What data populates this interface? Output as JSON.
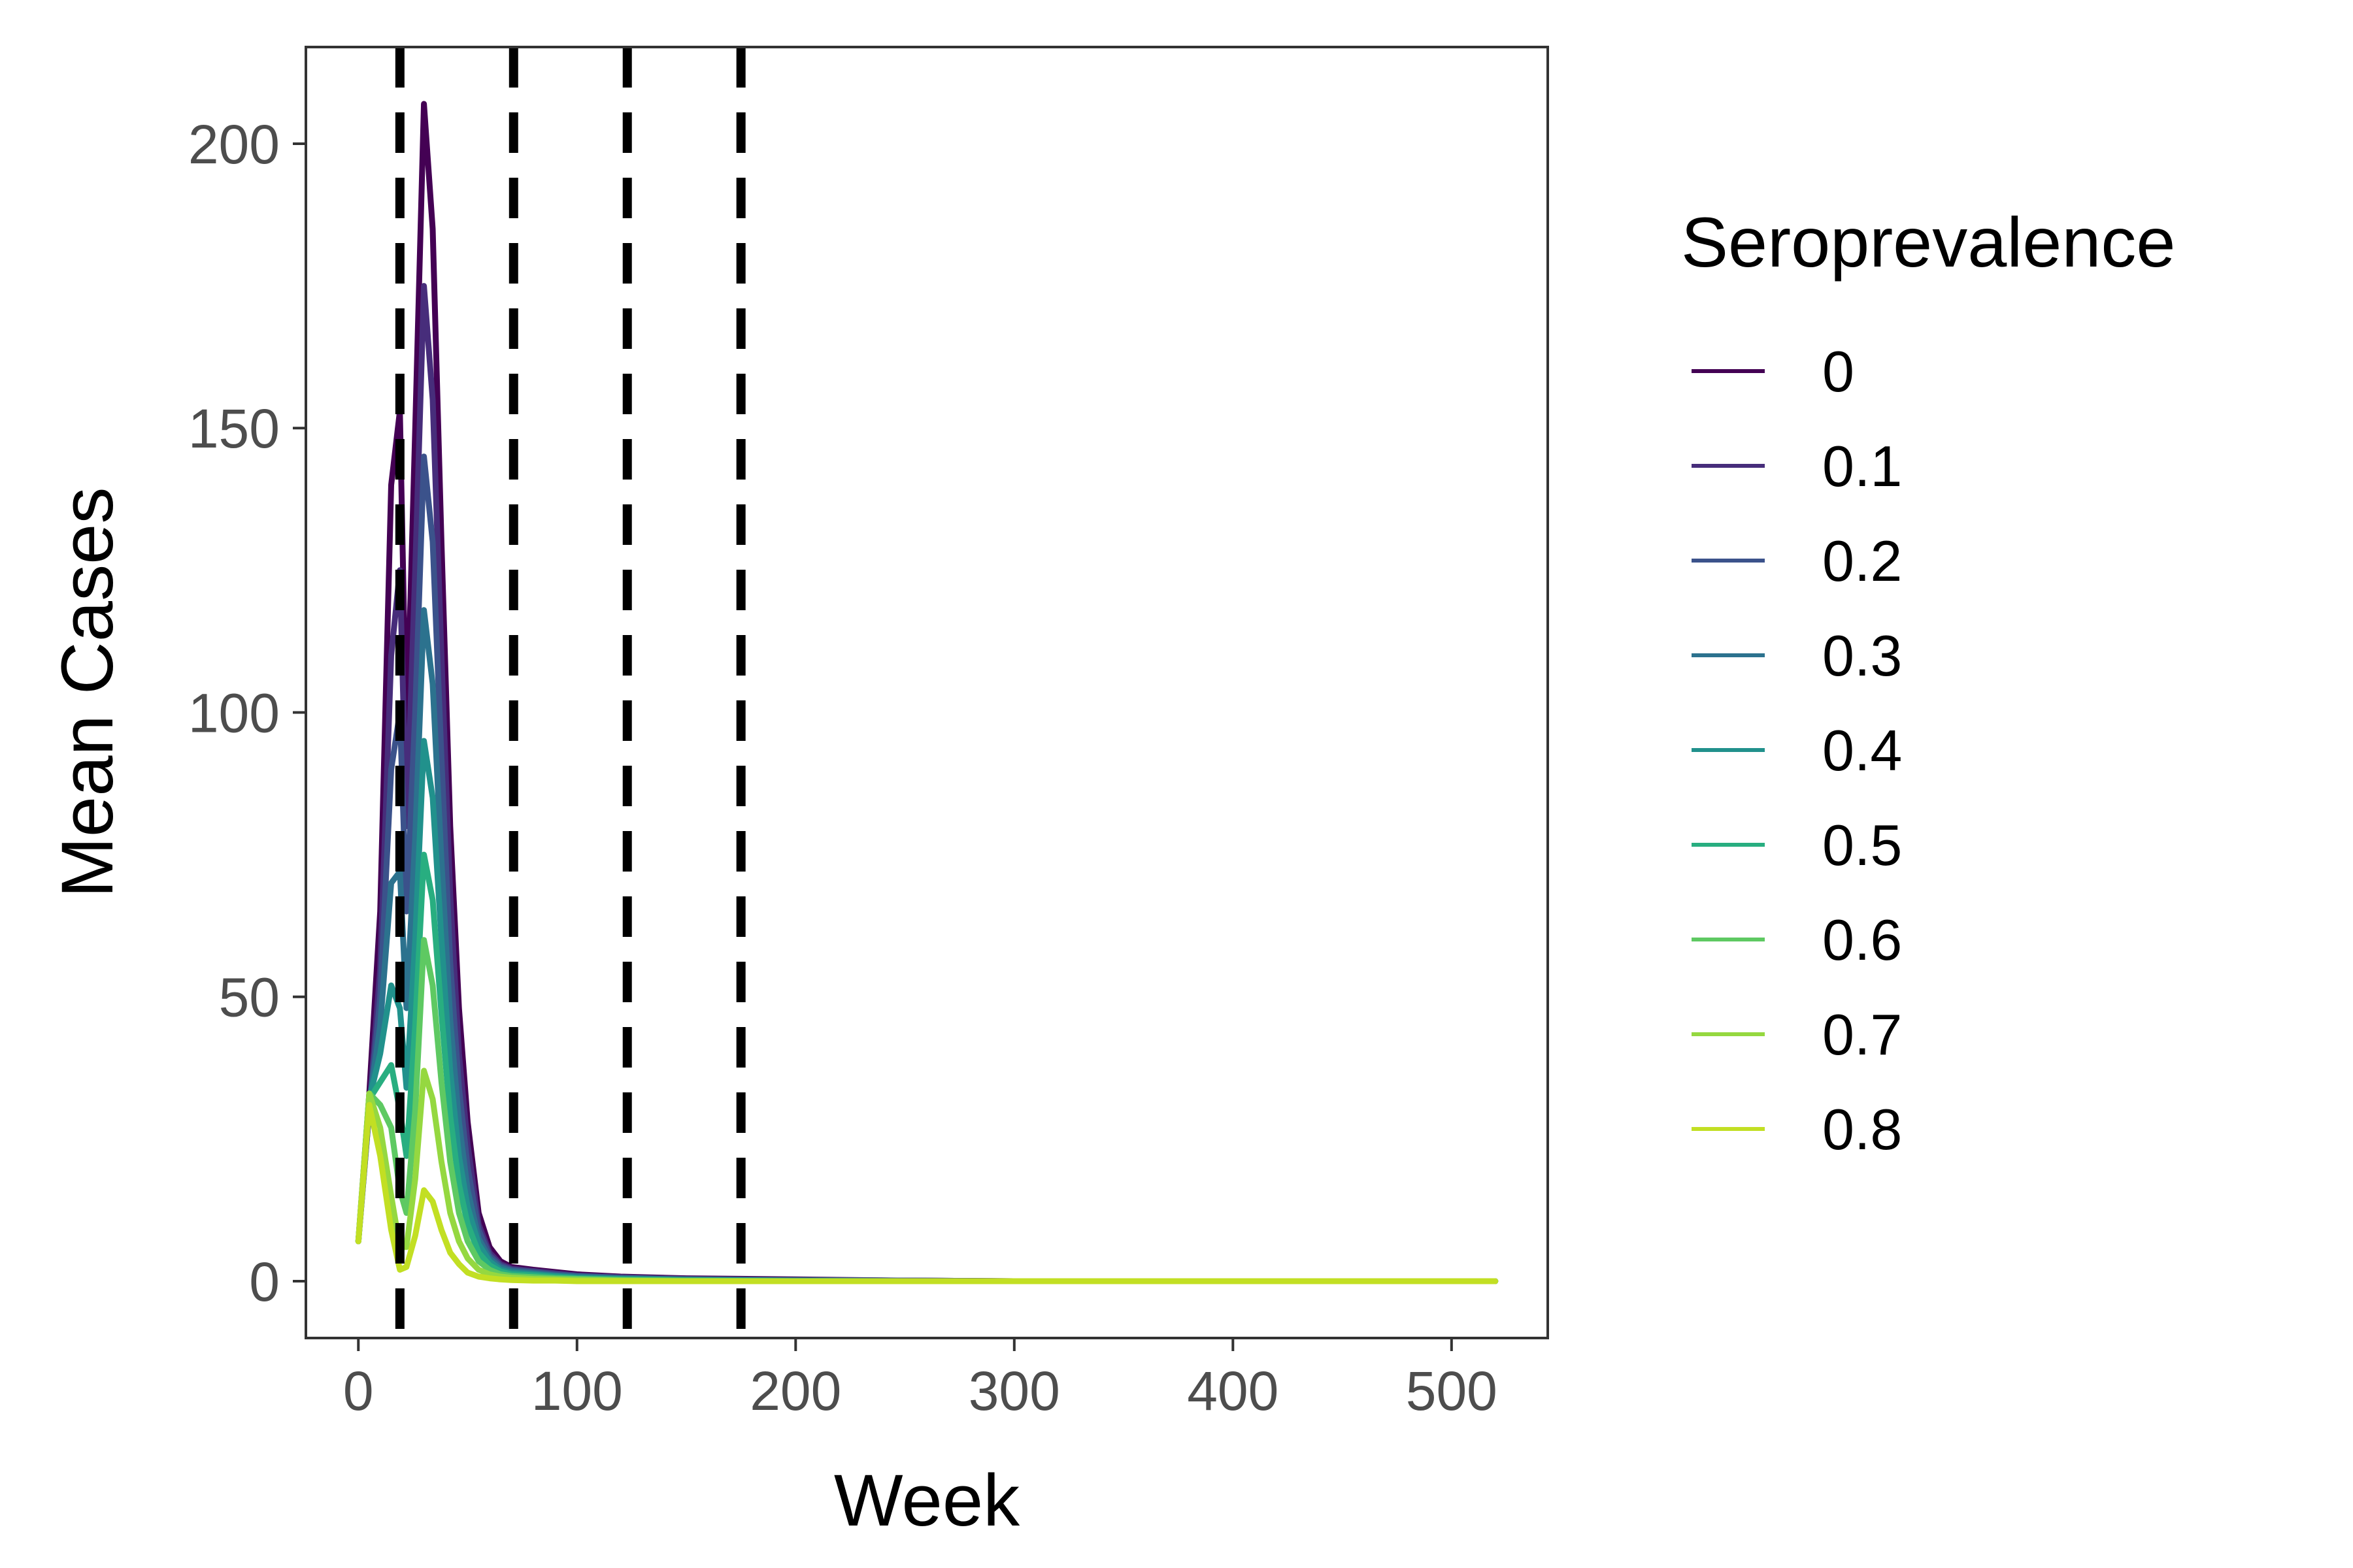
{
  "chart_data": {
    "type": "line",
    "xlabel": "Week",
    "ylabel": "Mean Cases",
    "xlim": [
      -24,
      544
    ],
    "ylim": [
      -10,
      217
    ],
    "x_ticks": [
      0,
      100,
      200,
      300,
      400,
      500
    ],
    "x_tick_labels": [
      "0",
      "100",
      "200",
      "300",
      "400",
      "500"
    ],
    "y_ticks": [
      0,
      50,
      100,
      150,
      200
    ],
    "y_tick_labels": [
      "0",
      "50",
      "100",
      "150",
      "200"
    ],
    "grid": false,
    "legend": {
      "title": "Seroprevalence",
      "position": "right"
    },
    "vlines": {
      "x": [
        19,
        71,
        123,
        175
      ],
      "style": "dashed",
      "color": "#000000"
    },
    "series": [
      {
        "name": "0",
        "color": "#440154",
        "x": [
          0,
          5,
          10,
          15,
          19,
          22,
          26,
          30,
          34,
          38,
          42,
          46,
          50,
          55,
          60,
          65,
          70,
          80,
          90,
          100,
          120,
          150,
          200,
          250,
          300,
          400,
          520
        ],
        "y": [
          7,
          33,
          65,
          140,
          153,
          95,
          150,
          207,
          185,
          130,
          80,
          48,
          28,
          12,
          6,
          3.5,
          2.5,
          2,
          1.6,
          1.2,
          0.8,
          0.5,
          0.3,
          0.1,
          0,
          0,
          0
        ]
      },
      {
        "name": "0.1",
        "color": "#472d7b",
        "x": [
          0,
          5,
          10,
          15,
          19,
          22,
          26,
          30,
          34,
          38,
          42,
          46,
          50,
          55,
          60,
          65,
          70,
          80,
          90,
          100,
          120,
          150,
          200,
          250,
          300,
          400,
          520
        ],
        "y": [
          7,
          30,
          55,
          110,
          125,
          80,
          125,
          175,
          155,
          110,
          68,
          40,
          24,
          10,
          5,
          3,
          2.2,
          1.8,
          1.4,
          1,
          0.7,
          0.4,
          0.2,
          0.1,
          0,
          0,
          0
        ]
      },
      {
        "name": "0.2",
        "color": "#3b528b",
        "x": [
          0,
          5,
          10,
          15,
          19,
          22,
          26,
          30,
          34,
          38,
          42,
          46,
          50,
          55,
          60,
          65,
          70,
          80,
          90,
          100,
          120,
          150,
          200,
          250,
          300,
          400,
          520
        ],
        "y": [
          7,
          30,
          50,
          90,
          100,
          65,
          100,
          145,
          130,
          92,
          56,
          34,
          20,
          9,
          4.5,
          2.7,
          2,
          1.6,
          1.2,
          0.9,
          0.6,
          0.3,
          0.2,
          0.1,
          0,
          0,
          0
        ]
      },
      {
        "name": "0.3",
        "color": "#2c728e",
        "x": [
          0,
          5,
          10,
          15,
          19,
          22,
          26,
          30,
          34,
          38,
          42,
          46,
          50,
          55,
          60,
          65,
          70,
          80,
          90,
          100,
          120,
          150,
          200,
          250,
          300,
          400,
          520
        ],
        "y": [
          7,
          31,
          45,
          70,
          72,
          48,
          78,
          118,
          105,
          74,
          46,
          28,
          16,
          7.5,
          4,
          2.4,
          1.8,
          1.4,
          1,
          0.8,
          0.5,
          0.3,
          0.1,
          0,
          0,
          0,
          0
        ]
      },
      {
        "name": "0.4",
        "color": "#21918c",
        "x": [
          0,
          5,
          10,
          15,
          19,
          22,
          26,
          30,
          34,
          38,
          42,
          46,
          50,
          55,
          60,
          65,
          70,
          80,
          90,
          100,
          120,
          150,
          200,
          250,
          300,
          400,
          520
        ],
        "y": [
          7,
          32,
          40,
          52,
          48,
          34,
          60,
          95,
          85,
          60,
          37,
          22,
          13,
          6.5,
          3.5,
          2,
          1.5,
          1.2,
          0.9,
          0.6,
          0.4,
          0.2,
          0.1,
          0,
          0,
          0,
          0
        ]
      },
      {
        "name": "0.5",
        "color": "#28ae80",
        "x": [
          0,
          5,
          10,
          15,
          19,
          22,
          26,
          30,
          34,
          38,
          42,
          46,
          50,
          55,
          60,
          65,
          70,
          80,
          90,
          100,
          120,
          150,
          200,
          250,
          300,
          400,
          520
        ],
        "y": [
          7,
          32,
          35,
          38,
          30,
          22,
          45,
          75,
          67,
          47,
          29,
          17,
          10,
          5,
          2.8,
          1.7,
          1.2,
          1,
          0.7,
          0.5,
          0.3,
          0.1,
          0,
          0,
          0,
          0,
          0
        ]
      },
      {
        "name": "0.6",
        "color": "#5ec962",
        "x": [
          0,
          5,
          10,
          15,
          19,
          22,
          26,
          30,
          34,
          38,
          42,
          46,
          50,
          55,
          60,
          65,
          70,
          80,
          90,
          100,
          120,
          150,
          200,
          250,
          300,
          400,
          520
        ],
        "y": [
          7,
          33,
          31,
          27,
          16,
          12,
          30,
          60,
          52,
          35,
          21,
          12,
          7,
          3.5,
          2,
          1.2,
          0.9,
          0.7,
          0.5,
          0.4,
          0.2,
          0.1,
          0,
          0,
          0,
          0,
          0
        ]
      },
      {
        "name": "0.7",
        "color": "#95d840",
        "x": [
          0,
          5,
          10,
          15,
          19,
          22,
          26,
          30,
          34,
          38,
          42,
          46,
          50,
          55,
          60,
          65,
          70,
          80,
          90,
          100,
          120,
          150,
          200,
          250,
          300,
          400,
          520
        ],
        "y": [
          7,
          33,
          27,
          15,
          6,
          6,
          18,
          37,
          32,
          21,
          12,
          7,
          4,
          2,
          1.2,
          0.8,
          0.6,
          0.4,
          0.3,
          0.2,
          0.1,
          0,
          0,
          0,
          0,
          0,
          0
        ]
      },
      {
        "name": "0.8",
        "color": "#c2df23",
        "x": [
          0,
          5,
          10,
          15,
          19,
          22,
          26,
          30,
          34,
          38,
          42,
          46,
          50,
          55,
          60,
          65,
          70,
          80,
          90,
          100,
          120,
          150,
          200,
          250,
          300,
          400,
          520
        ],
        "y": [
          7,
          31,
          22,
          9,
          2,
          2.5,
          8,
          16,
          14,
          9,
          5,
          3,
          1.5,
          0.8,
          0.5,
          0.3,
          0.2,
          0.1,
          0.1,
          0,
          0,
          0,
          0,
          0,
          0,
          0,
          0
        ]
      }
    ]
  }
}
